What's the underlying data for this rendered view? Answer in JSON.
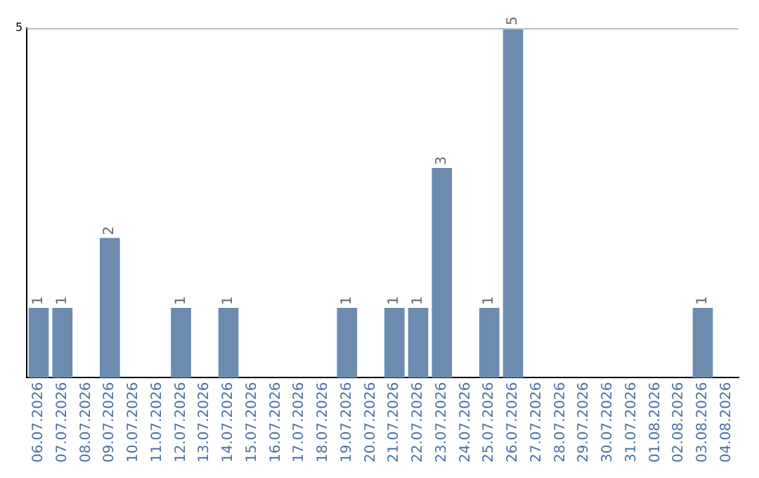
{
  "chart_data": {
    "type": "bar",
    "categories": [
      "06.07.2026",
      "07.07.2026",
      "08.07.2026",
      "09.07.2026",
      "10.07.2026",
      "11.07.2026",
      "12.07.2026",
      "13.07.2026",
      "14.07.2026",
      "15.07.2026",
      "16.07.2026",
      "17.07.2026",
      "18.07.2026",
      "19.07.2026",
      "20.07.2026",
      "21.07.2026",
      "22.07.2026",
      "23.07.2026",
      "24.07.2026",
      "25.07.2026",
      "26.07.2026",
      "27.07.2026",
      "28.07.2026",
      "29.07.2026",
      "30.07.2026",
      "31.07.2026",
      "01.08.2026",
      "02.08.2026",
      "03.08.2026",
      "04.08.2026"
    ],
    "values": [
      1,
      1,
      0,
      2,
      0,
      0,
      1,
      0,
      1,
      0,
      0,
      0,
      0,
      1,
      0,
      1,
      1,
      3,
      0,
      1,
      5,
      0,
      0,
      0,
      0,
      0,
      0,
      0,
      1,
      0
    ],
    "value_labels": [
      "1",
      "1",
      null,
      "2",
      null,
      null,
      "1",
      null,
      "1",
      null,
      null,
      null,
      null,
      "1",
      null,
      "1",
      "1",
      "3",
      null,
      "1",
      "5",
      null,
      null,
      null,
      null,
      null,
      null,
      null,
      "1",
      null
    ],
    "color": "#6b8cae",
    "ylim": [
      0,
      5
    ],
    "yticks": [
      5
    ],
    "ref_lines": [
      {
        "axis": "y",
        "value": 5,
        "color": "#bbbbbb"
      }
    ],
    "legend": false
  }
}
